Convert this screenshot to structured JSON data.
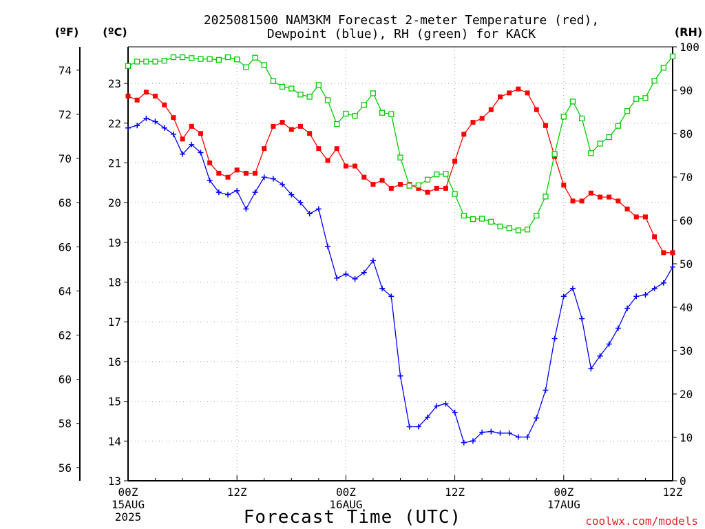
{
  "chart_data": {
    "type": "line",
    "title_line1": "2025081500 NAM3KM Forecast 2-meter Temperature (red),",
    "title_line2": "Dewpoint (blue), RH (green) for KACK",
    "unit_f": "(ºF)",
    "unit_c": "(ºC)",
    "unit_rh": "(RH)",
    "xlabel": "Forecast Time (UTC)",
    "credit": "coolwx.com/models",
    "x_range_hours": [
      0,
      60
    ],
    "x_ticks": [
      {
        "h": 0,
        "lines": [
          "00Z",
          "15AUG",
          "2025"
        ]
      },
      {
        "h": 12,
        "lines": [
          "12Z"
        ]
      },
      {
        "h": 24,
        "lines": [
          "00Z",
          "16AUG"
        ]
      },
      {
        "h": 36,
        "lines": [
          "12Z"
        ]
      },
      {
        "h": 48,
        "lines": [
          "00Z",
          "17AUG"
        ]
      },
      {
        "h": 60,
        "lines": [
          "12Z"
        ]
      }
    ],
    "c_range": [
      13,
      23.92
    ],
    "c_ticks": [
      13,
      14,
      15,
      16,
      17,
      18,
      19,
      20,
      21,
      22,
      23
    ],
    "f_ticks": [
      56,
      58,
      60,
      62,
      64,
      66,
      68,
      70,
      72,
      74
    ],
    "rh_range": [
      0,
      100
    ],
    "rh_ticks": [
      0,
      10,
      20,
      30,
      40,
      50,
      60,
      70,
      80,
      90,
      100
    ],
    "grid": true,
    "hour_step": 1,
    "colors": {
      "temperature": "#ff0000",
      "dewpoint": "#0000ff",
      "rh": "#00cc00"
    },
    "series": [
      {
        "name": "Temperature (red)",
        "unit": "C",
        "marker": "filled-square",
        "values": [
          22.68,
          22.58,
          22.78,
          22.68,
          22.46,
          22.14,
          21.6,
          21.92,
          21.74,
          21.0,
          20.74,
          20.64,
          20.82,
          20.74,
          20.74,
          21.36,
          21.92,
          22.02,
          21.84,
          21.92,
          21.74,
          21.36,
          21.06,
          21.36,
          20.92,
          20.92,
          20.64,
          20.46,
          20.56,
          20.36,
          20.46,
          20.46,
          20.36,
          20.26,
          20.36,
          20.36,
          21.04,
          21.72,
          22.02,
          22.12,
          22.34,
          22.66,
          22.76,
          22.86,
          22.76,
          22.34,
          21.94,
          21.16,
          20.44,
          20.04,
          20.04,
          20.24,
          20.14,
          20.14,
          20.04,
          19.84,
          19.64,
          19.64,
          19.14,
          18.74,
          18.74
        ]
      },
      {
        "name": "Dewpoint (blue)",
        "unit": "C",
        "marker": "plus",
        "values": [
          21.88,
          21.94,
          22.12,
          22.04,
          21.88,
          21.72,
          21.22,
          21.46,
          21.26,
          20.56,
          20.26,
          20.2,
          20.3,
          19.84,
          20.26,
          20.64,
          20.6,
          20.46,
          20.2,
          20.0,
          19.72,
          19.84,
          18.9,
          18.1,
          18.2,
          18.08,
          18.24,
          18.54,
          17.84,
          17.64,
          15.64,
          14.36,
          14.36,
          14.6,
          14.88,
          14.94,
          14.72,
          13.96,
          14.0,
          14.22,
          14.24,
          14.2,
          14.2,
          14.1,
          14.1,
          14.58,
          15.28,
          16.58,
          17.64,
          17.84,
          17.08,
          15.82,
          16.14,
          16.44,
          16.84,
          17.34,
          17.64,
          17.68,
          17.84,
          17.98,
          18.38
        ]
      },
      {
        "name": "RH (green)",
        "marker": "open-square",
        "values": [
          95.6,
          96.6,
          96.6,
          96.6,
          96.8,
          97.6,
          97.6,
          97.4,
          97.2,
          97.2,
          97.0,
          97.6,
          97.1,
          95.3,
          97.5,
          95.8,
          92.1,
          90.8,
          90.4,
          89.0,
          88.5,
          91.2,
          87.7,
          82.2,
          84.6,
          84.1,
          86.6,
          89.3,
          84.8,
          84.5,
          74.5,
          68.0,
          68.1,
          69.4,
          70.6,
          70.7,
          66.1,
          61.1,
          60.3,
          60.4,
          59.7,
          58.6,
          58.2,
          57.7,
          57.9,
          61.1,
          65.5,
          75.3,
          83.9,
          87.4,
          83.5,
          75.5,
          77.7,
          79.2,
          81.8,
          85.2,
          88.0,
          88.2,
          92.2,
          95.2,
          97.8
        ]
      }
    ]
  }
}
